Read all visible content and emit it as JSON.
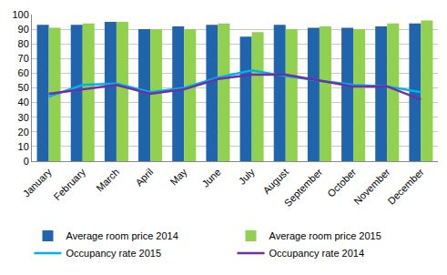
{
  "chart_data": {
    "type": "bar",
    "categories": [
      "January",
      "February",
      "March",
      "April",
      "May",
      "June",
      "July",
      "August",
      "September",
      "October",
      "November",
      "December"
    ],
    "series": [
      {
        "name": "Average room price 2014",
        "type": "bar",
        "color": "#1f64ad",
        "values": [
          93,
          93,
          95,
          90,
          92,
          93,
          85,
          93,
          91,
          91,
          92,
          94
        ]
      },
      {
        "name": "Average room price 2015",
        "type": "bar",
        "color": "#92d050",
        "values": [
          91,
          94,
          95,
          90,
          90,
          94,
          88,
          90,
          92,
          90,
          94,
          96
        ]
      },
      {
        "name": "Occupancy rate 2015",
        "type": "line",
        "color": "#00b0f0",
        "values": [
          44,
          52,
          53,
          47,
          50,
          57,
          62,
          58,
          55,
          52,
          51,
          47
        ]
      },
      {
        "name": "Occupancy rate 2014",
        "type": "line",
        "color": "#7030a0",
        "values": [
          46,
          49,
          52,
          46,
          49,
          56,
          59,
          59,
          55,
          51,
          51,
          42
        ]
      }
    ],
    "ylim": [
      0,
      100
    ],
    "yticks": [
      0,
      10,
      20,
      30,
      40,
      50,
      60,
      70,
      80,
      90,
      100
    ],
    "grid": true,
    "legend": "bottom"
  }
}
